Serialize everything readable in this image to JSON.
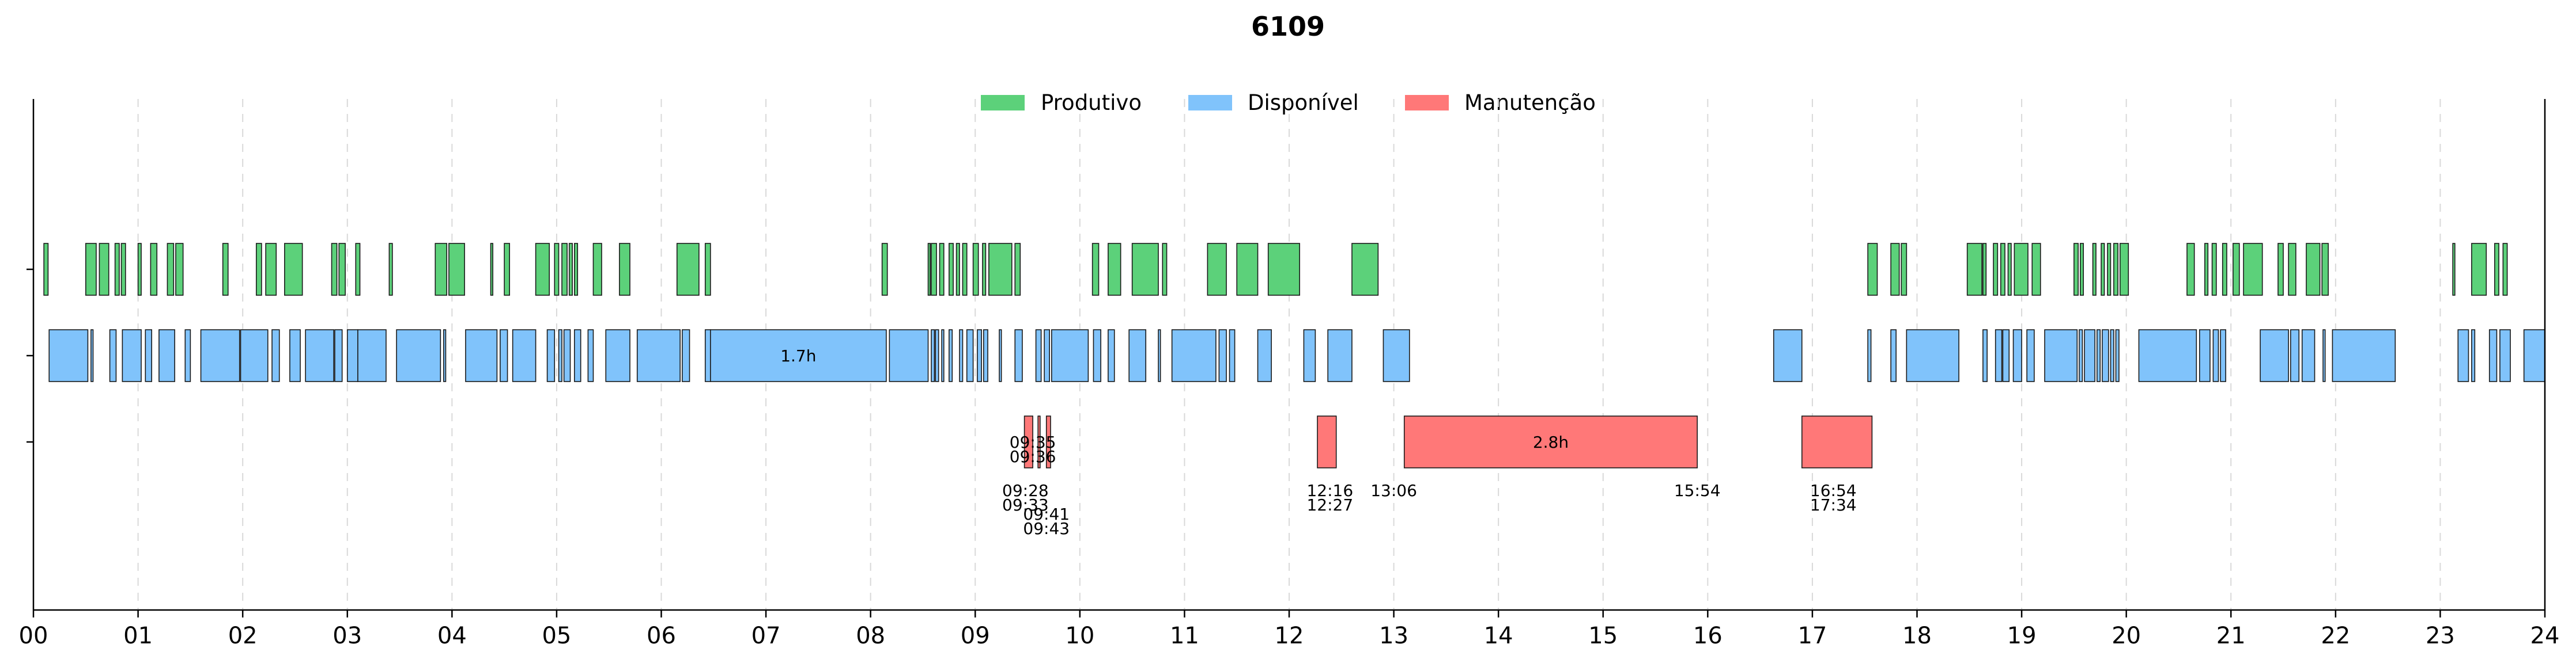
{
  "chart_data": {
    "type": "timeline",
    "title": "6109",
    "xlabel": "",
    "ylabel": "",
    "xlim": [
      0,
      24
    ],
    "grid": "x-dashed",
    "legend_placement": "top-center",
    "xticks": [
      "00",
      "01",
      "02",
      "03",
      "04",
      "05",
      "06",
      "07",
      "08",
      "09",
      "10",
      "11",
      "12",
      "13",
      "14",
      "15",
      "16",
      "17",
      "18",
      "19",
      "20",
      "21",
      "22",
      "23",
      "24"
    ],
    "series": [
      {
        "name": "Produtivo",
        "color": "#5cd17a",
        "intervals": [
          [
            0.1,
            0.14
          ],
          [
            0.5,
            0.6
          ],
          [
            0.63,
            0.72
          ],
          [
            0.78,
            0.82
          ],
          [
            0.84,
            0.88
          ],
          [
            1.0,
            1.03
          ],
          [
            1.12,
            1.18
          ],
          [
            1.28,
            1.34
          ],
          [
            1.36,
            1.43
          ],
          [
            1.81,
            1.86
          ],
          [
            2.13,
            2.18
          ],
          [
            2.22,
            2.32
          ],
          [
            2.4,
            2.57
          ],
          [
            2.85,
            2.9
          ],
          [
            2.92,
            2.98
          ],
          [
            3.08,
            3.12
          ],
          [
            3.4,
            3.43
          ],
          [
            3.84,
            3.95
          ],
          [
            3.97,
            4.12
          ],
          [
            4.37,
            4.39
          ],
          [
            4.5,
            4.55
          ],
          [
            4.8,
            4.93
          ],
          [
            4.98,
            5.02
          ],
          [
            5.05,
            5.1
          ],
          [
            5.12,
            5.15
          ],
          [
            5.17,
            5.2
          ],
          [
            5.35,
            5.43
          ],
          [
            5.6,
            5.7
          ],
          [
            6.15,
            6.36
          ],
          [
            6.42,
            6.47
          ],
          [
            8.11,
            8.16
          ],
          [
            8.55,
            8.57
          ],
          [
            8.58,
            8.63
          ],
          [
            8.66,
            8.7
          ],
          [
            8.75,
            8.79
          ],
          [
            8.82,
            8.85
          ],
          [
            8.88,
            8.92
          ],
          [
            8.98,
            9.03
          ],
          [
            9.07,
            9.1
          ],
          [
            9.13,
            9.35
          ],
          [
            9.38,
            9.43
          ],
          [
            10.12,
            10.18
          ],
          [
            10.27,
            10.39
          ],
          [
            10.5,
            10.75
          ],
          [
            10.79,
            10.83
          ],
          [
            11.22,
            11.4
          ],
          [
            11.5,
            11.7
          ],
          [
            11.8,
            12.1
          ],
          [
            12.6,
            12.85
          ],
          [
            17.53,
            17.62
          ],
          [
            17.75,
            17.83
          ],
          [
            17.85,
            17.9
          ],
          [
            18.48,
            18.62
          ],
          [
            18.63,
            18.66
          ],
          [
            18.73,
            18.77
          ],
          [
            18.8,
            18.84
          ],
          [
            18.87,
            18.9
          ],
          [
            18.93,
            19.06
          ],
          [
            19.1,
            19.18
          ],
          [
            19.5,
            19.54
          ],
          [
            19.56,
            19.59
          ],
          [
            19.68,
            19.71
          ],
          [
            19.76,
            19.79
          ],
          [
            19.82,
            19.85
          ],
          [
            19.88,
            19.92
          ],
          [
            19.94,
            20.02
          ],
          [
            20.58,
            20.65
          ],
          [
            20.75,
            20.78
          ],
          [
            20.82,
            20.86
          ],
          [
            20.92,
            20.96
          ],
          [
            21.02,
            21.08
          ],
          [
            21.12,
            21.3
          ],
          [
            21.45,
            21.5
          ],
          [
            21.55,
            21.62
          ],
          [
            21.72,
            21.85
          ],
          [
            21.87,
            21.93
          ],
          [
            23.12,
            23.14
          ],
          [
            23.3,
            23.44
          ],
          [
            23.52,
            23.56
          ],
          [
            23.6,
            23.64
          ]
        ]
      },
      {
        "name": "Disponível",
        "color": "#80c3fb",
        "intervals": [
          [
            0.15,
            0.52
          ],
          [
            0.55,
            0.57
          ],
          [
            0.73,
            0.79
          ],
          [
            0.85,
            1.03
          ],
          [
            1.07,
            1.13
          ],
          [
            1.2,
            1.35
          ],
          [
            1.45,
            1.5
          ],
          [
            1.6,
            1.97
          ],
          [
            1.98,
            2.24
          ],
          [
            2.28,
            2.35
          ],
          [
            2.45,
            2.55
          ],
          [
            2.6,
            2.87
          ],
          [
            2.88,
            2.95
          ],
          [
            3.0,
            3.1
          ],
          [
            3.1,
            3.37
          ],
          [
            3.47,
            3.89
          ],
          [
            3.92,
            3.94
          ],
          [
            4.13,
            4.43
          ],
          [
            4.46,
            4.53
          ],
          [
            4.58,
            4.8
          ],
          [
            4.91,
            4.98
          ],
          [
            5.02,
            5.05
          ],
          [
            5.07,
            5.13
          ],
          [
            5.17,
            5.23
          ],
          [
            5.3,
            5.35
          ],
          [
            5.47,
            5.7
          ],
          [
            5.77,
            6.18
          ],
          [
            6.2,
            6.27
          ],
          [
            6.42,
            6.47
          ],
          [
            6.47,
            8.15
          ],
          [
            8.18,
            8.55
          ],
          [
            8.58,
            8.61
          ],
          [
            8.62,
            8.65
          ],
          [
            8.68,
            8.7
          ],
          [
            8.75,
            8.78
          ],
          [
            8.85,
            8.88
          ],
          [
            8.92,
            8.98
          ],
          [
            9.02,
            9.06
          ],
          [
            9.08,
            9.12
          ],
          [
            9.23,
            9.25
          ],
          [
            9.38,
            9.45
          ],
          [
            9.58,
            9.63
          ],
          [
            9.66,
            9.71
          ],
          [
            9.73,
            10.08
          ],
          [
            10.13,
            10.2
          ],
          [
            10.27,
            10.33
          ],
          [
            10.47,
            10.63
          ],
          [
            10.75,
            10.77
          ],
          [
            10.88,
            11.3
          ],
          [
            11.33,
            11.4
          ],
          [
            11.43,
            11.48
          ],
          [
            11.7,
            11.83
          ],
          [
            12.14,
            12.25
          ],
          [
            12.37,
            12.6
          ],
          [
            12.9,
            13.15
          ],
          [
            16.63,
            16.9
          ],
          [
            17.53,
            17.56
          ],
          [
            17.75,
            17.8
          ],
          [
            17.9,
            18.4
          ],
          [
            18.63,
            18.67
          ],
          [
            18.75,
            18.81
          ],
          [
            18.82,
            18.88
          ],
          [
            18.92,
            19.0
          ],
          [
            19.05,
            19.12
          ],
          [
            19.22,
            19.53
          ],
          [
            19.55,
            19.58
          ],
          [
            19.6,
            19.7
          ],
          [
            19.72,
            19.75
          ],
          [
            19.77,
            19.83
          ],
          [
            19.85,
            19.88
          ],
          [
            19.9,
            19.93
          ],
          [
            20.12,
            20.67
          ],
          [
            20.7,
            20.8
          ],
          [
            20.83,
            20.88
          ],
          [
            20.9,
            20.95
          ],
          [
            21.28,
            21.55
          ],
          [
            21.57,
            21.65
          ],
          [
            21.68,
            21.8
          ],
          [
            21.88,
            21.9
          ],
          [
            21.97,
            22.57
          ],
          [
            23.17,
            23.27
          ],
          [
            23.3,
            23.33
          ],
          [
            23.47,
            23.54
          ],
          [
            23.57,
            23.67
          ],
          [
            23.8,
            24.0
          ]
        ],
        "bar_labels": [
          {
            "start": 6.47,
            "end": 8.15,
            "text": "1.7h"
          }
        ]
      },
      {
        "name": "Manutenção",
        "color": "#ff7878",
        "intervals": [
          [
            9.47,
            9.55
          ],
          [
            9.6,
            9.62
          ],
          [
            9.68,
            9.72
          ],
          [
            12.27,
            12.45
          ],
          [
            13.1,
            15.9
          ],
          [
            16.9,
            17.57
          ]
        ],
        "bar_labels": [
          {
            "start": 13.1,
            "end": 15.9,
            "text": "2.8h"
          }
        ],
        "time_labels": [
          {
            "x": 9.55,
            "row": 0,
            "text": "09:35"
          },
          {
            "x": 9.55,
            "row": 1,
            "text": "09:36"
          },
          {
            "x": 9.48,
            "row": 2,
            "text": "09:28"
          },
          {
            "x": 9.48,
            "row": 3,
            "text": "09:33"
          },
          {
            "x": 9.68,
            "row": 4,
            "text": "09:41"
          },
          {
            "x": 9.68,
            "row": 5,
            "text": "09:43"
          },
          {
            "x": 12.39,
            "row": 2,
            "text": "12:16"
          },
          {
            "x": 12.39,
            "row": 3,
            "text": "12:27"
          },
          {
            "x": 13.0,
            "row": 2,
            "text": "13:06"
          },
          {
            "x": 15.9,
            "row": 2,
            "text": "15:54"
          },
          {
            "x": 17.2,
            "row": 2,
            "text": "16:54"
          },
          {
            "x": 17.2,
            "row": 3,
            "text": "17:34"
          }
        ]
      }
    ]
  }
}
